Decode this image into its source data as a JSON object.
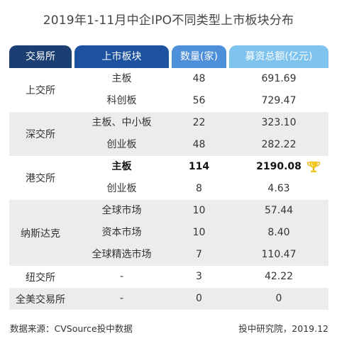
{
  "title": "2019年1-11月中企IPO不同类型上市板块分布",
  "headers": [
    "交易所",
    "上市板块",
    "数量(家)",
    "募资总额(亿元)"
  ],
  "groups": [
    {
      "name": "上交所",
      "rows": [
        {
          "board": "主板",
          "count": "48",
          "amount": "691.69"
        },
        {
          "board": "科创板",
          "count": "56",
          "amount": "729.47"
        }
      ]
    },
    {
      "name": "深交所",
      "rows": [
        {
          "board": "主板、中小板",
          "count": "22",
          "amount": "323.10"
        },
        {
          "board": "创业板",
          "count": "48",
          "amount": "282.22"
        }
      ]
    },
    {
      "name": "港交所",
      "rows": [
        {
          "board": "主板",
          "count": "114",
          "amount": "2190.08"
        },
        {
          "board": "创业板",
          "count": "8",
          "amount": "4.63"
        }
      ]
    },
    {
      "name": "纳斯达克",
      "rows": [
        {
          "board": "全球市场",
          "count": "10",
          "amount": "57.44"
        },
        {
          "board": "资本市场",
          "count": "10",
          "amount": "8.40"
        },
        {
          "board": "全球精选市场",
          "count": "7",
          "amount": "110.47"
        }
      ]
    },
    {
      "name": "纽交所",
      "rows": [
        {
          "board": "-",
          "count": "3",
          "amount": "42.22"
        }
      ]
    },
    {
      "name": "全美交易所",
      "rows": [
        {
          "board": "-",
          "count": "0",
          "amount": "0"
        }
      ]
    }
  ],
  "highlight_icon": "trophy-icon",
  "colors": {
    "header_1": "#1b3f72",
    "header_2": "#1c52a0",
    "header_3": "#4d8fd8",
    "header_4": "#7ec3ee",
    "trophy": "#f3c623"
  },
  "footer": {
    "source": "数据来源：CVSource投中数据",
    "credit": "投中研究院，2019.12"
  }
}
